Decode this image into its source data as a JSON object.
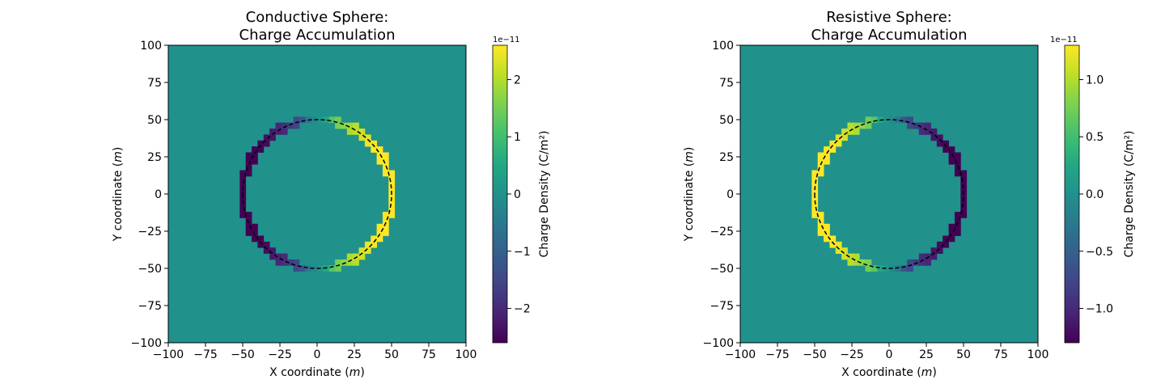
{
  "colors": {
    "background_value": "#21918c",
    "dashed_line": "#000000",
    "viridis_stops": [
      "#440154",
      "#482475",
      "#414487",
      "#355f8d",
      "#2a788e",
      "#21918c",
      "#22a884",
      "#44bf70",
      "#7ad151",
      "#bddf26",
      "#fde725"
    ]
  },
  "chart_data": [
    {
      "type": "heatmap",
      "title_line1": "Conductive Sphere:",
      "title_line2": "Charge Accumulation",
      "xlabel": "X coordinate (",
      "xlabel_unit": "m",
      "xlabel_close": ")",
      "ylabel": "Y coordinate (",
      "ylabel_unit": "m",
      "ylabel_close": ")",
      "xlim": [
        -100,
        100
      ],
      "ylim": [
        -100,
        100
      ],
      "xticks": [
        -100,
        -75,
        -50,
        -25,
        0,
        25,
        50,
        75,
        100
      ],
      "yticks": [
        -100,
        -75,
        -50,
        -25,
        0,
        25,
        50,
        75,
        100
      ],
      "grid": false,
      "cell_size": 4,
      "colorbar": {
        "label": "Charge Density (C/m²)",
        "exponent_label": "1e−11",
        "vmin": -2.6,
        "vmax": 2.6,
        "ticks": [
          -2,
          -1,
          0,
          1,
          2
        ],
        "tick_labels": [
          "−2",
          "−1",
          "0",
          "1",
          "2"
        ]
      },
      "overlay_circle": {
        "center": [
          0,
          0
        ],
        "radius": 50,
        "style": "dashed"
      },
      "pattern": {
        "sign": 1,
        "peak": 2.6,
        "description": "Ring of charge at r≈50: positive on right side (x>0), negative on left side (x<0), zero elsewhere"
      }
    },
    {
      "type": "heatmap",
      "title_line1": "Resistive Sphere:",
      "title_line2": "Charge Accumulation",
      "xlabel": "X coordinate (",
      "xlabel_unit": "m",
      "xlabel_close": ")",
      "ylabel": "Y coordinate (",
      "ylabel_unit": "m",
      "ylabel_close": ")",
      "xlim": [
        -100,
        100
      ],
      "ylim": [
        -100,
        100
      ],
      "xticks": [
        -100,
        -75,
        -50,
        -25,
        0,
        25,
        50,
        75,
        100
      ],
      "yticks": [
        -100,
        -75,
        -50,
        -25,
        0,
        25,
        50,
        75,
        100
      ],
      "grid": false,
      "cell_size": 4,
      "colorbar": {
        "label": "Charge Density (C/m²)",
        "exponent_label": "1e−11",
        "vmin": -1.3,
        "vmax": 1.3,
        "ticks": [
          -1.0,
          -0.5,
          0.0,
          0.5,
          1.0
        ],
        "tick_labels": [
          "−1.0",
          "−0.5",
          "0.0",
          "0.5",
          "1.0"
        ]
      },
      "overlay_circle": {
        "center": [
          0,
          0
        ],
        "radius": 50,
        "style": "dashed"
      },
      "pattern": {
        "sign": -1,
        "peak": 1.3,
        "description": "Ring of charge at r≈50: positive on left side (x<0), negative on right side (x>0), zero elsewhere"
      }
    }
  ]
}
